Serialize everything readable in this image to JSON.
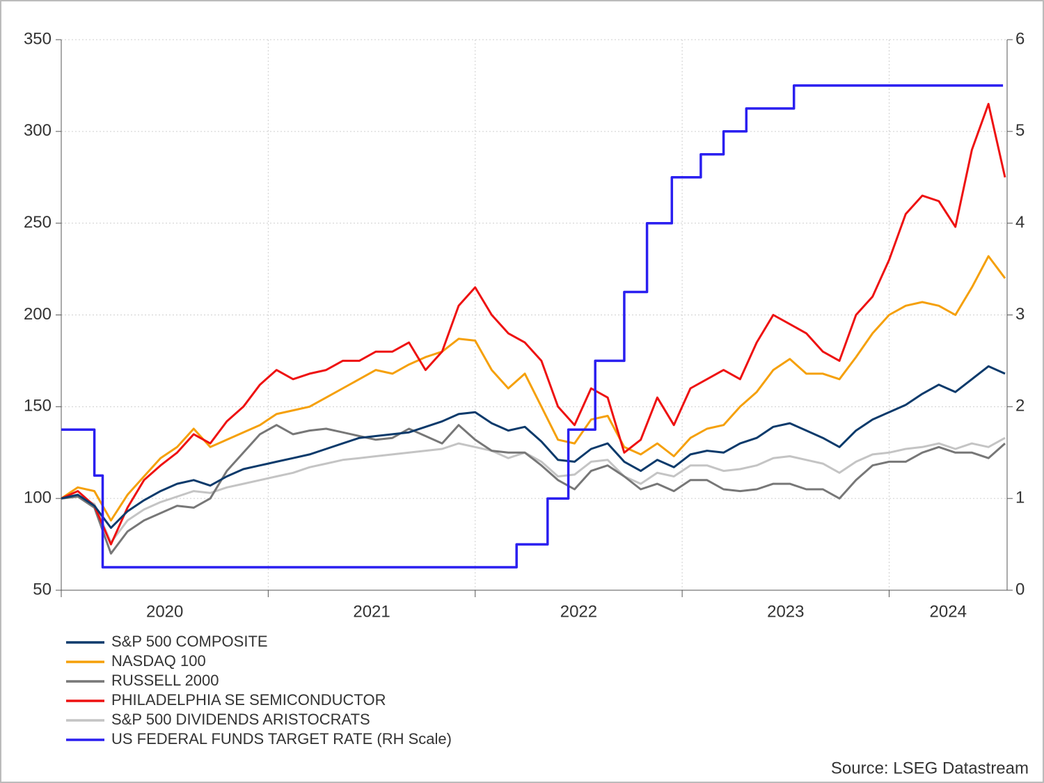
{
  "chart_data": {
    "type": "line",
    "source": "Source: LSEG Datastream",
    "x": [
      2020,
      2020.08,
      2020.16,
      2020.24,
      2020.32,
      2020.4,
      2020.48,
      2020.56,
      2020.64,
      2020.72,
      2020.8,
      2020.88,
      2020.96,
      2021.04,
      2021.12,
      2021.2,
      2021.28,
      2021.36,
      2021.44,
      2021.52,
      2021.6,
      2021.68,
      2021.76,
      2021.84,
      2021.92,
      2022,
      2022.08,
      2022.16,
      2022.24,
      2022.32,
      2022.4,
      2022.48,
      2022.56,
      2022.64,
      2022.72,
      2022.8,
      2022.88,
      2022.96,
      2023.04,
      2023.12,
      2023.2,
      2023.28,
      2023.36,
      2023.44,
      2023.52,
      2023.6,
      2023.68,
      2023.76,
      2023.84,
      2023.92,
      2024,
      2024.08,
      2024.16,
      2024.24,
      2024.32,
      2024.4,
      2024.48,
      2024.56
    ],
    "xlim": [
      2020,
      2024.57
    ],
    "xticks": [
      2020,
      2021,
      2022,
      2023,
      2024
    ],
    "ylim": [
      50,
      350
    ],
    "yticks": [
      50,
      100,
      150,
      200,
      250,
      300,
      350
    ],
    "y2lim": [
      0,
      6
    ],
    "y2ticks": [
      0,
      1,
      2,
      3,
      4,
      5,
      6
    ],
    "grid": true,
    "legend": "below",
    "series": [
      {
        "name": "S&P 500 COMPOSITE",
        "color": "#0b3a6b",
        "values": [
          100,
          102,
          96,
          84,
          93,
          99,
          104,
          108,
          110,
          107,
          112,
          116,
          118,
          120,
          122,
          124,
          127,
          130,
          133,
          134,
          135,
          136,
          139,
          142,
          146,
          147,
          141,
          137,
          139,
          131,
          121,
          120,
          127,
          130,
          120,
          115,
          121,
          117,
          124,
          126,
          125,
          130,
          133,
          139,
          141,
          137,
          133,
          128,
          137,
          143,
          147,
          151,
          157,
          162,
          158,
          165,
          172,
          168
        ]
      },
      {
        "name": "NASDAQ 100",
        "color": "#f5a00a",
        "values": [
          100,
          106,
          104,
          88,
          102,
          112,
          122,
          128,
          138,
          128,
          132,
          136,
          140,
          146,
          148,
          150,
          155,
          160,
          165,
          170,
          168,
          173,
          177,
          180,
          187,
          186,
          170,
          160,
          168,
          150,
          132,
          130,
          143,
          145,
          128,
          124,
          130,
          123,
          133,
          138,
          140,
          150,
          158,
          170,
          176,
          168,
          168,
          165,
          177,
          190,
          200,
          205,
          207,
          205,
          200,
          215,
          232,
          220
        ]
      },
      {
        "name": "RUSSELL 2000",
        "color": "#777777",
        "values": [
          100,
          101,
          95,
          70,
          82,
          88,
          92,
          96,
          95,
          100,
          115,
          125,
          135,
          140,
          135,
          137,
          138,
          136,
          134,
          132,
          133,
          138,
          134,
          130,
          140,
          132,
          126,
          125,
          125,
          118,
          110,
          105,
          115,
          118,
          112,
          105,
          108,
          104,
          110,
          110,
          105,
          104,
          105,
          108,
          108,
          105,
          105,
          100,
          110,
          118,
          120,
          120,
          125,
          128,
          125,
          125,
          122,
          130
        ]
      },
      {
        "name": "PHILADELPHIA SE SEMICONDUCTOR",
        "color": "#ee1111",
        "values": [
          100,
          104,
          96,
          75,
          95,
          110,
          118,
          125,
          135,
          130,
          142,
          150,
          162,
          170,
          165,
          168,
          170,
          175,
          175,
          180,
          180,
          185,
          170,
          180,
          205,
          215,
          200,
          190,
          185,
          175,
          150,
          140,
          160,
          155,
          125,
          132,
          155,
          140,
          160,
          165,
          170,
          165,
          185,
          200,
          195,
          190,
          180,
          175,
          200,
          210,
          230,
          255,
          265,
          262,
          248,
          290,
          315,
          275
        ]
      },
      {
        "name": "S&P 500 DIVIDENDS ARISTOCRATS",
        "color": "#c4c4c4",
        "values": [
          100,
          101,
          97,
          76,
          88,
          94,
          98,
          101,
          104,
          103,
          106,
          108,
          110,
          112,
          114,
          117,
          119,
          121,
          122,
          123,
          124,
          125,
          126,
          127,
          130,
          128,
          126,
          122,
          125,
          120,
          112,
          113,
          120,
          121,
          112,
          108,
          114,
          112,
          118,
          118,
          115,
          116,
          118,
          122,
          123,
          121,
          119,
          114,
          120,
          124,
          125,
          127,
          128,
          130,
          127,
          130,
          128,
          133
        ]
      },
      {
        "name": "US FEDERAL FUNDS TARGET RATE (RH Scale)",
        "color": "#2a1ff0",
        "axis": "y2",
        "x": [
          2020,
          2020.16,
          2020.16,
          2020.2,
          2020.2,
          2022.2,
          2022.2,
          2022.35,
          2022.35,
          2022.45,
          2022.45,
          2022.58,
          2022.58,
          2022.72,
          2022.72,
          2022.83,
          2022.83,
          2022.95,
          2022.95,
          2023.09,
          2023.09,
          2023.2,
          2023.2,
          2023.31,
          2023.31,
          2023.54,
          2023.54,
          2024.55
        ],
        "values": [
          1.75,
          1.75,
          1.25,
          1.25,
          0.25,
          0.25,
          0.5,
          0.5,
          1,
          1,
          1.75,
          1.75,
          2.5,
          2.5,
          3.25,
          3.25,
          4,
          4,
          4.5,
          4.5,
          4.75,
          4.75,
          5,
          5,
          5.25,
          5.25,
          5.5,
          5.5
        ]
      }
    ]
  }
}
